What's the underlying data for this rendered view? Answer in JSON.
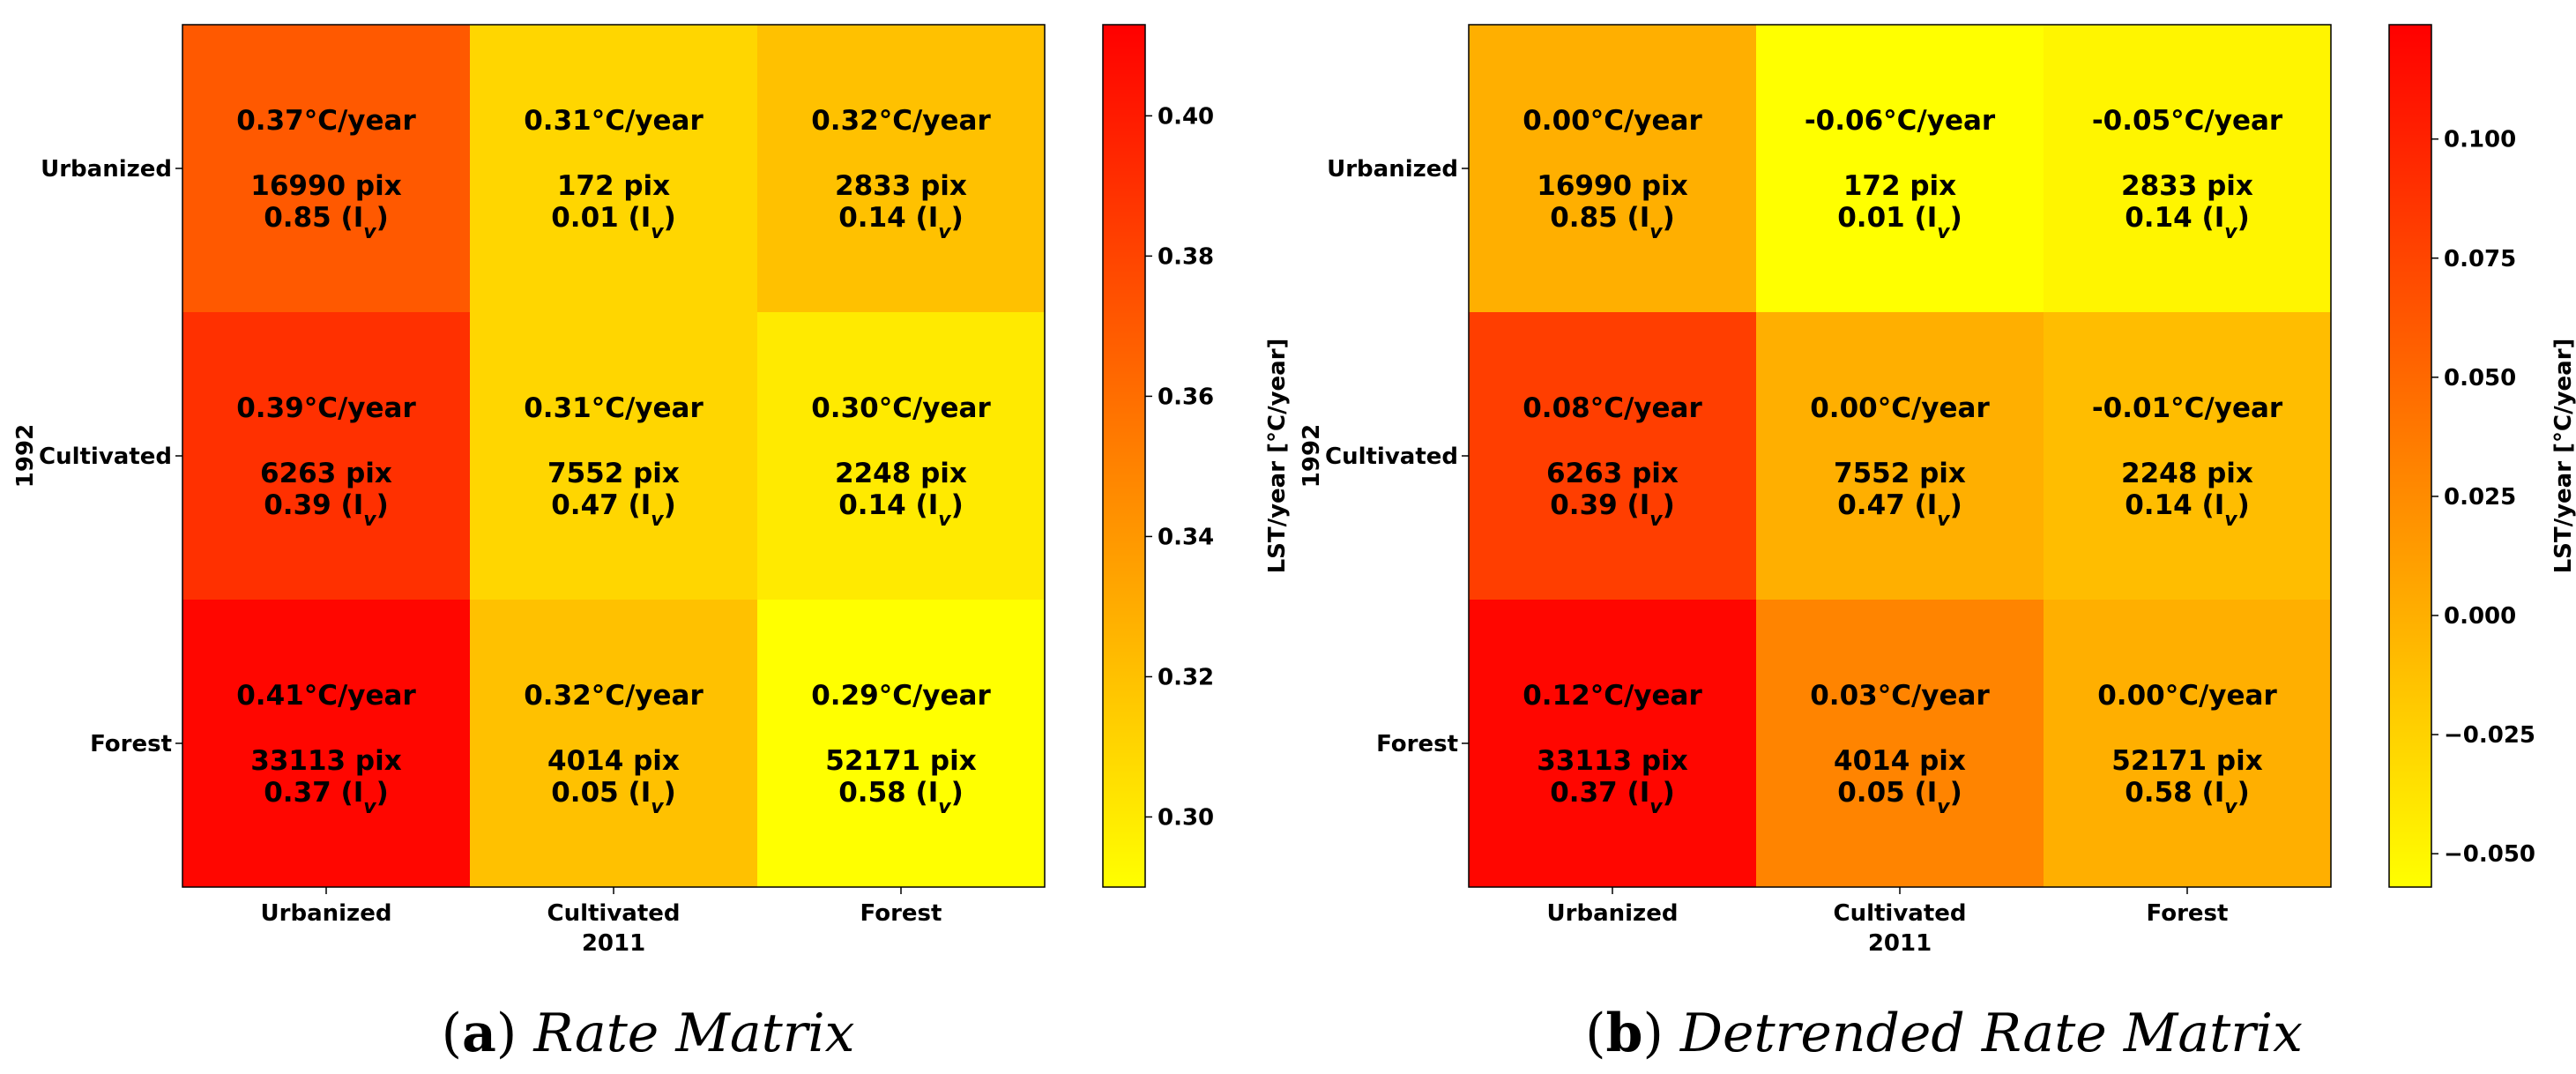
{
  "chart_data": [
    {
      "type": "heatmap",
      "caption_label": "a",
      "caption_text": "Rate Matrix",
      "xlabel": "2011",
      "ylabel": "1992",
      "x_categories": [
        "Urbanized",
        "Cultivated",
        "Forest"
      ],
      "y_categories": [
        "Urbanized",
        "Cultivated",
        "Forest"
      ],
      "unit": "°C/year",
      "colorbar_label": "LST/year [°C/year]",
      "colorbar_ticks": [
        "0.30",
        "0.32",
        "0.34",
        "0.36",
        "0.38",
        "0.40"
      ],
      "colorbar_range": [
        0.29,
        0.413
      ],
      "colormap": [
        "#ffff00",
        "#ff0000"
      ],
      "cells": [
        [
          {
            "rate_label": "0.37",
            "value": 0.37,
            "pixels": "16990",
            "index": "0.85"
          },
          {
            "rate_label": "0.31",
            "value": 0.31,
            "pixels": "172",
            "index": "0.01"
          },
          {
            "rate_label": "0.32",
            "value": 0.32,
            "pixels": "2833",
            "index": "0.14"
          }
        ],
        [
          {
            "rate_label": "0.39",
            "value": 0.39,
            "pixels": "6263",
            "index": "0.39"
          },
          {
            "rate_label": "0.31",
            "value": 0.31,
            "pixels": "7552",
            "index": "0.47"
          },
          {
            "rate_label": "0.30",
            "value": 0.3,
            "pixels": "2248",
            "index": "0.14"
          }
        ],
        [
          {
            "rate_label": "0.41",
            "value": 0.41,
            "pixels": "33113",
            "index": "0.37"
          },
          {
            "rate_label": "0.32",
            "value": 0.32,
            "pixels": "4014",
            "index": "0.05"
          },
          {
            "rate_label": "0.29",
            "value": 0.29,
            "pixels": "52171",
            "index": "0.58"
          }
        ]
      ]
    },
    {
      "type": "heatmap",
      "caption_label": "b",
      "caption_text": "Detrended Rate Matrix",
      "xlabel": "2011",
      "ylabel": "1992",
      "x_categories": [
        "Urbanized",
        "Cultivated",
        "Forest"
      ],
      "y_categories": [
        "Urbanized",
        "Cultivated",
        "Forest"
      ],
      "unit": "°C/year",
      "colorbar_label": "LST/year [°C/year]",
      "colorbar_ticks": [
        "−0.050",
        "−0.025",
        "0.000",
        "0.025",
        "0.050",
        "0.075",
        "0.100"
      ],
      "colorbar_range": [
        -0.057,
        0.124
      ],
      "colormap": [
        "#ffff00",
        "#ff0000"
      ],
      "cells": [
        [
          {
            "rate_label": "0.00",
            "value": 0.0,
            "pixels": "16990",
            "index": "0.85"
          },
          {
            "rate_label": "-0.06",
            "value": -0.06,
            "pixels": "172",
            "index": "0.01"
          },
          {
            "rate_label": "-0.05",
            "value": -0.05,
            "pixels": "2833",
            "index": "0.14"
          }
        ],
        [
          {
            "rate_label": "0.08",
            "value": 0.08,
            "pixels": "6263",
            "index": "0.39"
          },
          {
            "rate_label": "0.00",
            "value": 0.0,
            "pixels": "7552",
            "index": "0.47"
          },
          {
            "rate_label": "-0.01",
            "value": -0.01,
            "pixels": "2248",
            "index": "0.14"
          }
        ],
        [
          {
            "rate_label": "0.12",
            "value": 0.12,
            "pixels": "33113",
            "index": "0.37"
          },
          {
            "rate_label": "0.03",
            "value": 0.03,
            "pixels": "4014",
            "index": "0.05"
          },
          {
            "rate_label": "0.00",
            "value": 0.0,
            "pixels": "52171",
            "index": "0.58"
          }
        ]
      ]
    }
  ],
  "labels": {
    "pix_suffix": "pix",
    "index_symbol": "I",
    "index_subscript": "v"
  }
}
